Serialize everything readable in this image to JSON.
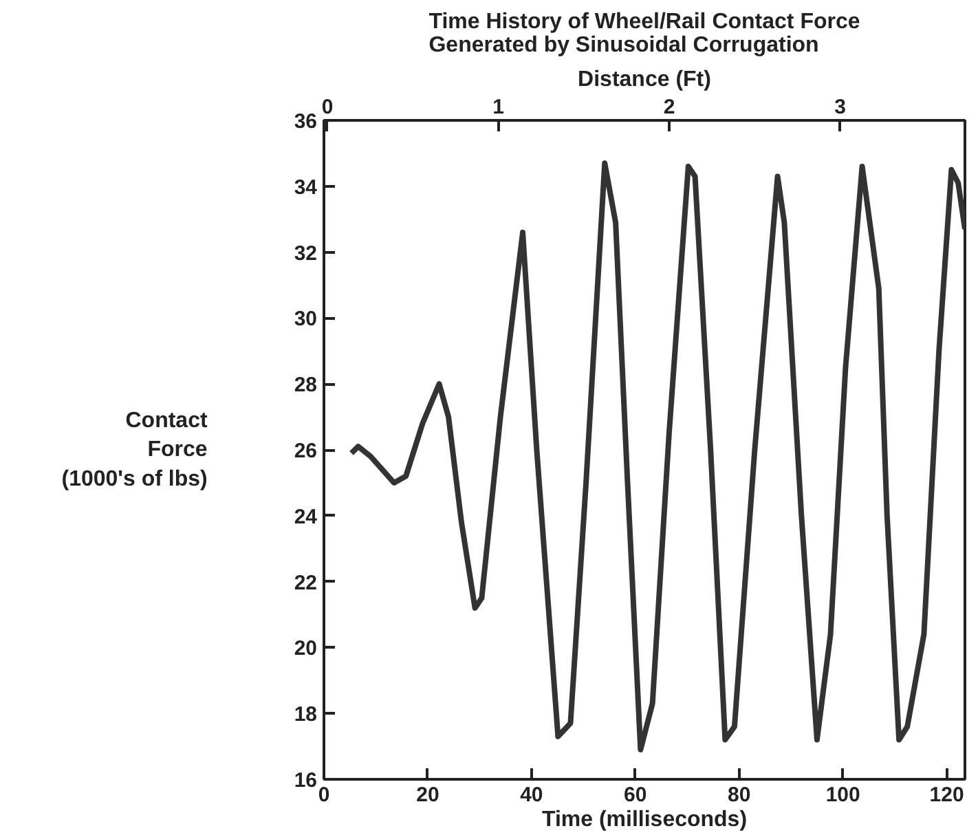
{
  "chart_data": {
    "type": "line",
    "title": "Time History of Wheel/Rail Contact Force\nGenerated by Sinusoidal Corrugation",
    "xlabel": "Time (milliseconds)",
    "ylabel": "Contact\nForce\n(1000's of lbs)",
    "x2label": "Distance (Ft)",
    "xlim": [
      0,
      123.5
    ],
    "xticks": [
      0,
      20,
      40,
      60,
      80,
      100,
      120
    ],
    "ylim": [
      16,
      36
    ],
    "yticks": [
      16,
      18,
      20,
      22,
      24,
      26,
      28,
      30,
      32,
      34,
      36
    ],
    "x2lim": [
      -0.02,
      3.73
    ],
    "x2ticks": [
      0,
      1,
      2,
      3
    ],
    "grid": false,
    "marker": "none",
    "line_style": "solid",
    "series": [
      {
        "color": "#333333",
        "x": [
          5.3,
          6.6,
          9.0,
          13.5,
          15.8,
          19.0,
          22.2,
          24.0,
          26.5,
          29.1,
          30.4,
          34.0,
          38.3,
          41.0,
          45.1,
          47.5,
          50.5,
          54.1,
          56.2,
          58.5,
          61.0,
          63.3,
          66.5,
          70.2,
          71.5,
          74.5,
          77.3,
          79.1,
          83.0,
          87.4,
          88.7,
          92.0,
          95.0,
          97.6,
          100.5,
          103.7,
          106.9,
          108.5,
          110.8,
          112.4,
          115.6,
          118.5,
          120.9,
          122.2,
          123.5
        ],
        "values": [
          25.9,
          26.1,
          25.8,
          25.0,
          25.2,
          26.8,
          28.0,
          27.0,
          23.8,
          21.2,
          21.5,
          27.0,
          32.6,
          26.0,
          17.3,
          17.7,
          25.0,
          34.7,
          32.9,
          25.0,
          16.9,
          18.3,
          26.5,
          34.6,
          34.3,
          26.0,
          17.2,
          17.6,
          26.0,
          34.3,
          32.9,
          24.0,
          17.2,
          20.4,
          28.5,
          34.6,
          30.9,
          24.0,
          17.2,
          17.6,
          20.4,
          29.0,
          34.5,
          34.1,
          32.7
        ]
      }
    ]
  }
}
